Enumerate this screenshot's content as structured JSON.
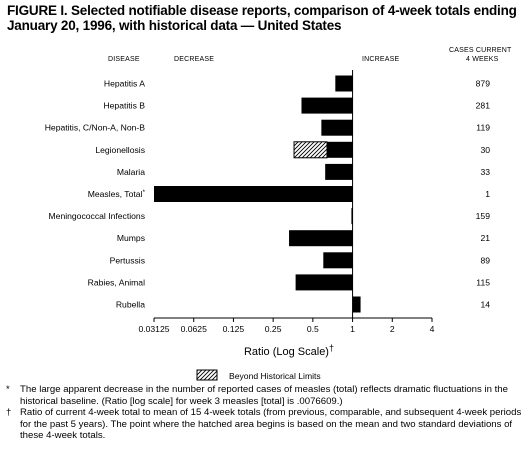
{
  "title": "FIGURE I. Selected notifiable disease reports, comparison of 4-week totals ending January 20, 1996, with historical data — United States",
  "headers": {
    "disease": "DISEASE",
    "decrease": "DECREASE",
    "increase": "INCREASE",
    "cases_line1": "CASES CURRENT",
    "cases_line2": "4 WEEKS"
  },
  "chart_data": {
    "type": "bar",
    "orientation": "horizontal",
    "xlabel": "Ratio (Log Scale)",
    "xlabel_mark": "†",
    "xscale": "log2",
    "xlim": [
      0.03125,
      4
    ],
    "baseline": 1,
    "xticks": [
      {
        "value": 0.03125,
        "label": "0.03125"
      },
      {
        "value": 0.0625,
        "label": "0.0625"
      },
      {
        "value": 0.125,
        "label": "0.125"
      },
      {
        "value": 0.25,
        "label": "0.25"
      },
      {
        "value": 0.5,
        "label": "0.5"
      },
      {
        "value": 1,
        "label": "1"
      },
      {
        "value": 2,
        "label": "2"
      },
      {
        "value": 4,
        "label": "4"
      }
    ],
    "rows": [
      {
        "disease": "Hepatitis A",
        "ratio": 0.74,
        "cases": "879"
      },
      {
        "disease": "Hepatitis B",
        "ratio": 0.41,
        "cases": "281"
      },
      {
        "disease": "Hepatitis, C/Non-A, Non-B",
        "ratio": 0.58,
        "cases": "119"
      },
      {
        "disease": "Legionellosis",
        "ratio": 0.36,
        "cases": "30",
        "beyond_limits_from": 0.64
      },
      {
        "disease": "Malaria",
        "ratio": 0.62,
        "cases": "33"
      },
      {
        "disease": "Measles, Total",
        "ratio": 0.03125,
        "cases": "1",
        "mark": "*"
      },
      {
        "disease": "Meningococcal Infections",
        "ratio": 0.98,
        "cases": "159"
      },
      {
        "disease": "Mumps",
        "ratio": 0.33,
        "cases": "21"
      },
      {
        "disease": "Pertussis",
        "ratio": 0.6,
        "cases": "89"
      },
      {
        "disease": "Rabies, Animal",
        "ratio": 0.37,
        "cases": "115"
      },
      {
        "disease": "Rubella",
        "ratio": 1.15,
        "cases": "14"
      }
    ],
    "legend": {
      "label": "Beyond Historical Limits"
    },
    "colors": {
      "bar": "#000000",
      "hatch": "#000000",
      "background": "#ffffff"
    }
  },
  "footnotes": [
    {
      "mark": "*",
      "text": "The large apparent decrease in the number of reported cases of measles (total) reflects dramatic fluctuations in the historical baseline. (Ratio [log scale] for week 3 measles [total] is .0076609.)"
    },
    {
      "mark": "†",
      "text": "Ratio of current 4-week total to mean of 15 4-week totals (from previous, comparable, and subsequent 4-week periods for the past 5 years). The point where the hatched area begins is based on the mean and two standard deviations of these 4-week totals."
    }
  ]
}
